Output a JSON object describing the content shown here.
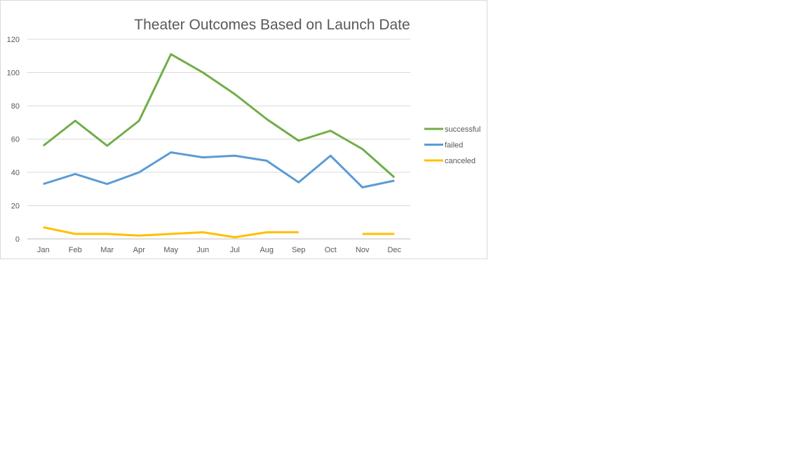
{
  "chart_data": {
    "type": "line",
    "title": "Theater Outcomes Based on Launch Date",
    "xlabel": "",
    "ylabel": "",
    "ylim": [
      0,
      120
    ],
    "yticks": [
      0,
      20,
      40,
      60,
      80,
      100,
      120
    ],
    "grid": true,
    "legend_position": "right",
    "categories": [
      "Jan",
      "Feb",
      "Mar",
      "Apr",
      "May",
      "Jun",
      "Jul",
      "Aug",
      "Sep",
      "Oct",
      "Nov",
      "Dec"
    ],
    "series": [
      {
        "name": "successful",
        "color": "#70ad47",
        "values": [
          56,
          71,
          56,
          71,
          111,
          100,
          87,
          72,
          59,
          65,
          54,
          37
        ]
      },
      {
        "name": "failed",
        "color": "#5b9bd5",
        "values": [
          33,
          39,
          33,
          40,
          52,
          49,
          50,
          47,
          34,
          50,
          31,
          35
        ]
      },
      {
        "name": "canceled",
        "color": "#ffc000",
        "values": [
          7,
          3,
          3,
          2,
          3,
          4,
          1,
          4,
          4,
          null,
          3,
          3
        ]
      }
    ]
  }
}
